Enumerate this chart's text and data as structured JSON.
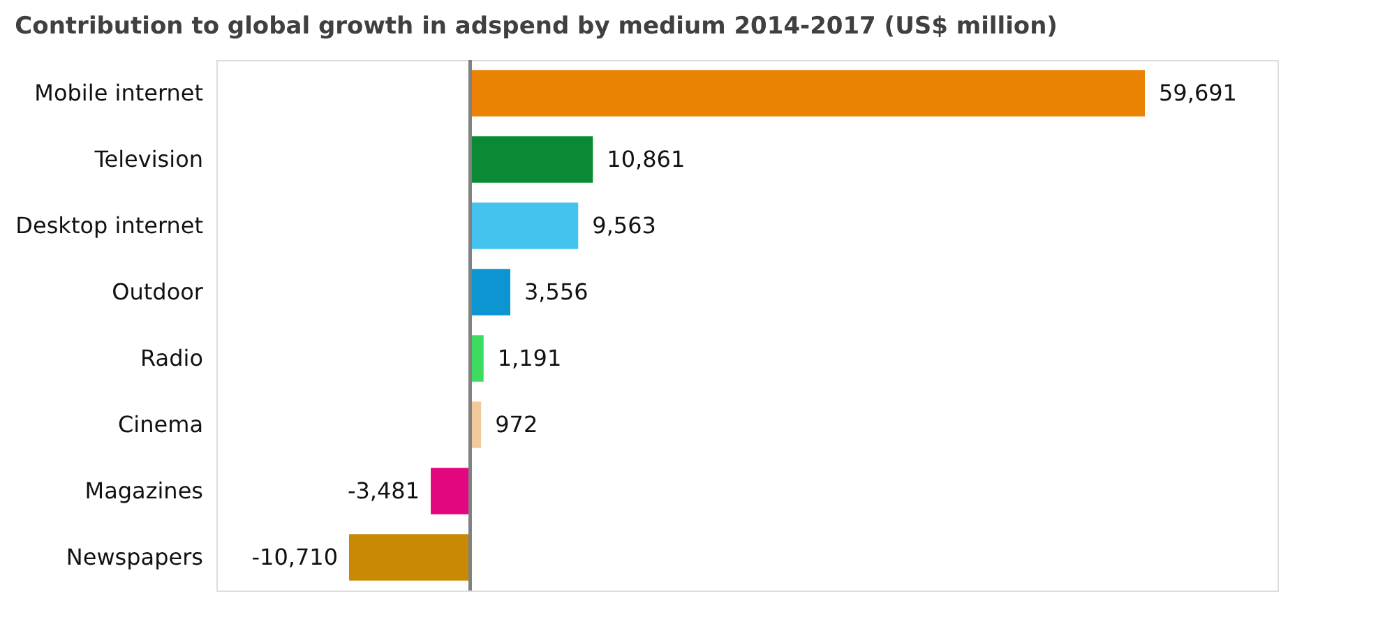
{
  "chart_data": {
    "type": "bar",
    "orientation": "horizontal",
    "title": "Contribution to global growth in adspend by medium 2014-2017 (US$ million)",
    "categories": [
      "Mobile internet",
      "Television",
      "Desktop internet",
      "Outdoor",
      "Radio",
      "Cinema",
      "Magazines",
      "Newspapers"
    ],
    "values": [
      59691,
      10861,
      9563,
      3556,
      1191,
      972,
      -3481,
      -10710
    ],
    "value_labels": [
      "59,691",
      "10,861",
      "9,563",
      "3,556",
      "1,191",
      "972",
      "-3,481",
      "-10,710"
    ],
    "colors": [
      "#ea8304",
      "#0a8a34",
      "#45c3ef",
      "#0d95d2",
      "#3ddc60",
      "#f2c99a",
      "#e2067f",
      "#c88a05"
    ]
  }
}
